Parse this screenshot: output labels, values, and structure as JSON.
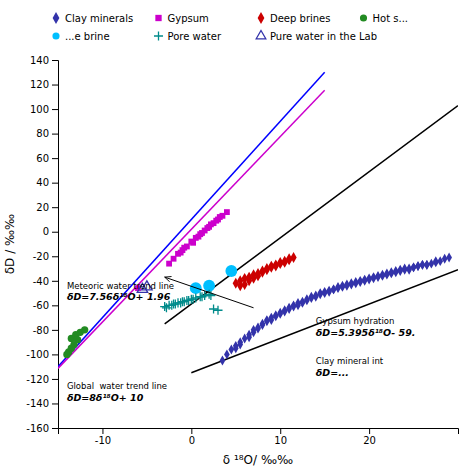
{
  "chart_data": {
    "type": "scatter",
    "xlabel": "δ ¹⁸O/ ‰‰",
    "ylabel": "δD / ‰‰",
    "xlim": [
      -15,
      30
    ],
    "ylim": [
      -160,
      140
    ],
    "xticks": [
      -10,
      0,
      10,
      20
    ],
    "yticks": [
      -160,
      -140,
      -120,
      -100,
      -80,
      -60,
      -40,
      -20,
      0,
      20,
      40,
      60,
      80,
      100,
      120,
      140
    ],
    "grid": false,
    "legend": "top",
    "series": [
      {
        "type": "line",
        "line_style": "solid",
        "color": "#0000FF",
        "x": [
          -15,
          15
        ],
        "y": [
          -110,
          130
        ]
      },
      {
        "type": "line",
        "line_style": "solid",
        "color": "#CC00CC",
        "x": [
          -15,
          15
        ],
        "y": [
          -111.44,
          115.36
        ]
      },
      {
        "type": "line",
        "line_style": "solid",
        "color": "#000000",
        "x": [
          -3,
          30
        ],
        "y": [
          -75.185,
          102.85
        ]
      },
      {
        "type": "line",
        "line_style": "solid",
        "color": "#000000",
        "x": [
          0,
          30
        ],
        "y": [
          -115,
          -31
        ]
      },
      {
        "type": "scatter",
        "name": "Clay minerals",
        "marker": "diamond",
        "color": "#3333AA",
        "x": [
          3.5,
          4.0,
          4.5,
          5.0,
          5.5,
          6.0,
          6.5,
          7.0,
          7.5,
          8.0,
          8.5,
          9.0,
          9.5,
          10.0,
          10.5,
          11.0,
          11.5,
          12.0,
          12.5,
          13.0,
          13.5,
          14.0,
          14.5,
          15.0,
          15.5,
          16.0,
          16.5,
          17.0,
          17.5,
          18.0,
          18.5,
          19.0,
          19.5,
          20.0,
          20.5,
          21.0,
          21.5,
          22.0,
          22.5,
          23.0,
          23.5,
          24.0,
          24.5,
          25.0,
          25.5,
          26.0,
          26.5,
          27.0,
          27.5,
          28.0,
          7.0,
          8.0,
          9.0,
          10.0,
          11.0,
          12.0,
          13.0,
          14.0,
          15.0,
          16.0,
          17.0,
          18.0,
          19.0,
          20.0,
          21.0,
          22.0,
          23.0,
          24.0,
          25.0,
          26.0,
          6.5,
          9.5,
          11.5,
          13.5,
          15.5,
          17.5,
          19.5,
          21.5,
          23.5,
          25.5,
          27.5,
          5.0,
          7.5,
          10.5,
          12.5,
          14.5,
          16.5,
          18.5,
          20.5,
          22.5,
          24.5,
          26.5,
          5.5,
          8.5,
          28.5,
          29.0
        ],
        "y": [
          -105,
          -100,
          -96,
          -93,
          -90,
          -87,
          -84,
          -80,
          -78,
          -75,
          -72,
          -70,
          -68,
          -66,
          -64,
          -62,
          -60,
          -58,
          -57,
          -55,
          -53,
          -52,
          -50,
          -49,
          -48,
          -47,
          -45,
          -44,
          -43,
          -42,
          -41,
          -40,
          -39,
          -38,
          -37,
          -36,
          -35,
          -34,
          -33,
          -32,
          -31,
          -30,
          -30,
          -29,
          -28,
          -27,
          -27,
          -26,
          -25,
          -24,
          -82,
          -76,
          -72,
          -67,
          -63,
          -60,
          -56,
          -53,
          -50,
          -47,
          -45,
          -43,
          -41,
          -39,
          -37,
          -35,
          -33,
          -31,
          -29,
          -27,
          -86,
          -69,
          -61,
          -54,
          -49,
          -44,
          -40,
          -36,
          -32,
          -28,
          -24,
          -95,
          -79,
          -65,
          -58,
          -51,
          -46,
          -42,
          -38,
          -34,
          -31,
          -27,
          -92,
          -73,
          -22,
          -21
        ]
      },
      {
        "type": "scatter",
        "name": "Gypsum",
        "marker": "square",
        "color": "#CC00CC",
        "x": [
          -1.5,
          -1.0,
          -0.5,
          0.0,
          0.5,
          1.0,
          1.5,
          2.0,
          2.5,
          3.0,
          3.5,
          4.0,
          -2.0,
          -2.5,
          -1.2,
          -0.8,
          0.2,
          0.8,
          1.2,
          1.8,
          2.2,
          2.8,
          3.2,
          -6.0
        ],
        "y": [
          -18,
          -15,
          -12,
          -8,
          -5,
          -2,
          1,
          4,
          7,
          10,
          13,
          16,
          -22,
          -26,
          -17,
          -13,
          -9,
          -4,
          -1,
          3,
          6,
          9,
          12,
          -46
        ]
      },
      {
        "type": "scatter",
        "name": "Deep brines",
        "marker": "diamond",
        "color": "#CC0000",
        "x": [
          5.0,
          5.5,
          6.0,
          6.5,
          7.0,
          7.5,
          8.0,
          8.5,
          9.0,
          9.5,
          10.0,
          10.5,
          11.0,
          11.5,
          6.0,
          7.0,
          8.0,
          9.0,
          10.0,
          11.0,
          7.5,
          8.5,
          9.5,
          10.5,
          6.5,
          5.5
        ],
        "y": [
          -42,
          -40,
          -38,
          -37,
          -35,
          -34,
          -32,
          -30,
          -28,
          -27,
          -25,
          -24,
          -22,
          -21,
          -43,
          -38,
          -33,
          -29,
          -26,
          -23,
          -36,
          -31,
          -28,
          -25,
          -40,
          -44
        ]
      },
      {
        "type": "scatter",
        "name": "Hot s...",
        "marker": "circle",
        "color": "#228B22",
        "x": [
          -13.5,
          -13.0,
          -12.5,
          -12.8,
          -13.2,
          -13.5,
          -12.0,
          -13.8,
          -14.0
        ],
        "y": [
          -87,
          -84,
          -82,
          -88,
          -92,
          -95,
          -80,
          -98,
          -100
        ]
      },
      {
        "type": "scatter",
        "name": "...e brine",
        "marker": "circle",
        "color": "#00BFFF",
        "x": [
          0.5,
          2.0,
          4.5
        ],
        "y": [
          -46,
          -44,
          -32
        ]
      },
      {
        "type": "scatter",
        "name": "Pore water",
        "marker": "plus",
        "color": "#008B8B",
        "x": [
          -3.0,
          -2.5,
          -2.0,
          -1.5,
          -1.0,
          -0.5,
          0.0,
          0.5,
          1.0,
          1.5,
          2.0,
          2.5,
          -2.8,
          -1.8,
          -0.8,
          0.2,
          1.2,
          2.2,
          -2.2,
          -1.2,
          -0.3,
          3.0
        ],
        "y": [
          -61,
          -60,
          -59,
          -58,
          -57,
          -56,
          -55,
          -54,
          -53,
          -52,
          -51,
          -63,
          -62,
          -59,
          -57,
          -55,
          -53,
          -52,
          -60,
          -58,
          -56,
          -64
        ]
      },
      {
        "type": "scatter",
        "name": "Pure water in the Lab",
        "marker": "triangle-open",
        "color": "#3333AA",
        "x": [
          -5.5,
          -5.0
        ],
        "y": [
          -47,
          -45
        ]
      }
    ],
    "arrows": [
      {
        "x": [
          7.0,
          -3.0
        ],
        "y": [
          -62,
          -37
        ]
      }
    ],
    "annotations": [
      {
        "text": "Meteoric water trend line",
        "x": -14,
        "y": -47
      },
      {
        "text": "δD=7.56δ¹⁸O+ 1.96",
        "x": -14,
        "y": -56
      },
      {
        "text": "Global  water trend line",
        "x": -14,
        "y": -128
      },
      {
        "text": "δD=8δ¹⁸O+ 10",
        "x": -14,
        "y": -138
      },
      {
        "text": "Gypsum hydration",
        "x": 14,
        "y": -75
      },
      {
        "text": "δD=5.395δ¹⁸O- 59.",
        "x": 14,
        "y": -85
      },
      {
        "text": "Clay mineral int",
        "x": 14,
        "y": -108
      },
      {
        "text": "δD=...",
        "x": 14,
        "y": -118
      }
    ]
  }
}
